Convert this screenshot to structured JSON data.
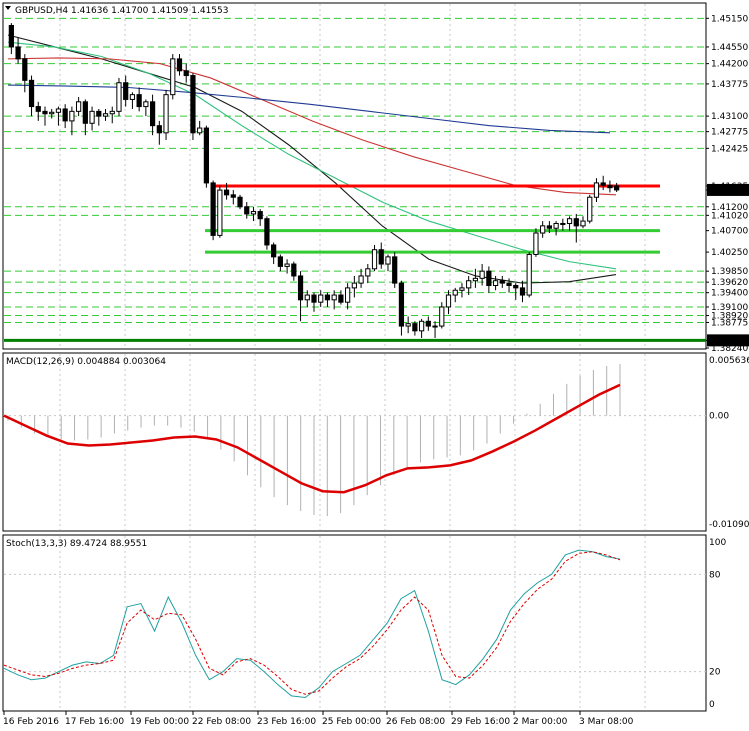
{
  "chart_data": [
    {
      "type": "candlestick",
      "title": "GBPUSD,H4",
      "ohlc_header": [
        "1.41636",
        "1.41700",
        "1.41509",
        "1.41553"
      ],
      "price_labels": [
        "1.45150",
        "1.44550",
        "1.44200",
        "1.43775",
        "1.43100",
        "1.42775",
        "1.42425",
        "1.41635",
        "1.41553",
        "1.41200",
        "1.41020",
        "1.40700",
        "1.40250",
        "1.39850",
        "1.39620",
        "1.39400",
        "1.39100",
        "1.38920",
        "1.38775",
        "1.38400",
        "1.38240"
      ],
      "highlight_labels": [
        "1.41553",
        "1.38400"
      ],
      "ylim": [
        1.3824,
        1.4545
      ],
      "horizontal_levels": [
        {
          "price": 1.41635,
          "color": "#ff0000"
        },
        {
          "price": 1.407,
          "color": "#33cc33"
        },
        {
          "price": 1.4025,
          "color": "#33cc33"
        },
        {
          "price": 1.384,
          "color": "#008000"
        }
      ],
      "dashed_levels": [
        1.4515,
        1.4455,
        1.442,
        1.43775,
        1.431,
        1.42775,
        1.42425,
        1.412,
        1.4102,
        1.3985,
        1.3962,
        1.394,
        1.391,
        1.3892,
        1.38775
      ],
      "candles": [
        [
          1.45,
          1.4505,
          1.444,
          1.4455
        ],
        [
          1.4455,
          1.4475,
          1.442,
          1.443
        ],
        [
          1.443,
          1.444,
          1.436,
          1.4385
        ],
        [
          1.4385,
          1.4395,
          1.431,
          1.433
        ],
        [
          1.433,
          1.434,
          1.43,
          1.432
        ],
        [
          1.432,
          1.433,
          1.429,
          1.4315
        ],
        [
          1.4315,
          1.4325,
          1.4305,
          1.4318
        ],
        [
          1.4318,
          1.433,
          1.429,
          1.4325
        ],
        [
          1.4325,
          1.4335,
          1.4285,
          1.43
        ],
        [
          1.43,
          1.433,
          1.427,
          1.432
        ],
        [
          1.432,
          1.435,
          1.431,
          1.434
        ],
        [
          1.434,
          1.4345,
          1.427,
          1.4295
        ],
        [
          1.4295,
          1.433,
          1.428,
          1.432
        ],
        [
          1.432,
          1.4325,
          1.429,
          1.431
        ],
        [
          1.431,
          1.4325,
          1.43,
          1.4315
        ],
        [
          1.4315,
          1.433,
          1.4295,
          1.432
        ],
        [
          1.432,
          1.439,
          1.431,
          1.438
        ],
        [
          1.438,
          1.4395,
          1.433,
          1.4345
        ],
        [
          1.4345,
          1.436,
          1.4325,
          1.4355
        ],
        [
          1.4355,
          1.437,
          1.432,
          1.433
        ],
        [
          1.433,
          1.4345,
          1.431,
          1.434
        ],
        [
          1.434,
          1.4355,
          1.427,
          1.429
        ],
        [
          1.429,
          1.43,
          1.425,
          1.4275
        ],
        [
          1.4275,
          1.4365,
          1.426,
          1.4355
        ],
        [
          1.4355,
          1.444,
          1.4345,
          1.443
        ],
        [
          1.443,
          1.444,
          1.4395,
          1.4405
        ],
        [
          1.4405,
          1.442,
          1.438,
          1.4395
        ],
        [
          1.4395,
          1.44,
          1.426,
          1.4275
        ],
        [
          1.4275,
          1.43,
          1.427,
          1.4285
        ],
        [
          1.4285,
          1.429,
          1.416,
          1.417
        ],
        [
          1.417,
          1.4175,
          1.405,
          1.406
        ],
        [
          1.406,
          1.4165,
          1.4055,
          1.4155
        ],
        [
          1.4155,
          1.417,
          1.4135,
          1.4145
        ],
        [
          1.4145,
          1.4155,
          1.4125,
          1.414
        ],
        [
          1.414,
          1.4145,
          1.4115,
          1.412
        ],
        [
          1.412,
          1.413,
          1.4095,
          1.4105
        ],
        [
          1.4105,
          1.412,
          1.409,
          1.411
        ],
        [
          1.411,
          1.4115,
          1.408,
          1.4095
        ],
        [
          1.4095,
          1.41,
          1.403,
          1.404
        ],
        [
          1.404,
          1.4045,
          1.4,
          1.4015
        ],
        [
          1.4015,
          1.402,
          1.3985,
          1.3995
        ],
        [
          1.3995,
          1.401,
          1.398,
          1.4
        ],
        [
          1.4,
          1.4005,
          1.3965,
          1.3975
        ],
        [
          1.3975,
          1.3985,
          1.388,
          1.3925
        ],
        [
          1.3925,
          1.3945,
          1.391,
          1.3935
        ],
        [
          1.3935,
          1.394,
          1.39,
          1.392
        ],
        [
          1.392,
          1.3945,
          1.391,
          1.3935
        ],
        [
          1.3935,
          1.394,
          1.391,
          1.3925
        ],
        [
          1.3925,
          1.3945,
          1.3905,
          1.3935
        ],
        [
          1.3935,
          1.3945,
          1.3915,
          1.392
        ],
        [
          1.392,
          1.396,
          1.3905,
          1.395
        ],
        [
          1.395,
          1.3975,
          1.393,
          1.396
        ],
        [
          1.396,
          1.399,
          1.395,
          1.3975
        ],
        [
          1.3975,
          1.4,
          1.396,
          1.399
        ],
        [
          1.399,
          1.404,
          1.3985,
          1.403
        ],
        [
          1.403,
          1.4045,
          1.399,
          1.4
        ],
        [
          1.4,
          1.402,
          1.3985,
          1.4015
        ],
        [
          1.4015,
          1.4025,
          1.395,
          1.396
        ],
        [
          1.396,
          1.3965,
          1.385,
          1.387
        ],
        [
          1.387,
          1.389,
          1.3855,
          1.3875
        ],
        [
          1.3875,
          1.388,
          1.385,
          1.386
        ],
        [
          1.386,
          1.3885,
          1.3845,
          1.388
        ],
        [
          1.388,
          1.389,
          1.386,
          1.387
        ],
        [
          1.387,
          1.388,
          1.3845,
          1.387
        ],
        [
          1.387,
          1.392,
          1.3865,
          1.391
        ],
        [
          1.391,
          1.3945,
          1.3895,
          1.3935
        ],
        [
          1.3935,
          1.395,
          1.392,
          1.3945
        ],
        [
          1.3945,
          1.396,
          1.393,
          1.395
        ],
        [
          1.395,
          1.3975,
          1.3935,
          1.3965
        ],
        [
          1.3965,
          1.399,
          1.395,
          1.397
        ],
        [
          1.397,
          1.4,
          1.3955,
          1.3985
        ],
        [
          1.3985,
          1.3995,
          1.394,
          1.3955
        ],
        [
          1.3955,
          1.3975,
          1.3945,
          1.3965
        ],
        [
          1.3965,
          1.3975,
          1.395,
          1.396
        ],
        [
          1.396,
          1.397,
          1.394,
          1.3955
        ],
        [
          1.3955,
          1.396,
          1.3925,
          1.395
        ],
        [
          1.395,
          1.3965,
          1.392,
          1.3935
        ],
        [
          1.3935,
          1.4025,
          1.393,
          1.402
        ],
        [
          1.402,
          1.4075,
          1.4015,
          1.4065
        ],
        [
          1.4065,
          1.409,
          1.4055,
          1.408
        ],
        [
          1.408,
          1.409,
          1.4065,
          1.4075
        ],
        [
          1.4075,
          1.409,
          1.406,
          1.4085
        ],
        [
          1.4085,
          1.4095,
          1.407,
          1.4085
        ],
        [
          1.4085,
          1.41,
          1.407,
          1.4095
        ],
        [
          1.4095,
          1.4105,
          1.4045,
          1.408
        ],
        [
          1.408,
          1.41,
          1.4075,
          1.409
        ],
        [
          1.409,
          1.4145,
          1.4085,
          1.414
        ],
        [
          1.414,
          1.418,
          1.413,
          1.417
        ],
        [
          1.417,
          1.4185,
          1.4155,
          1.4165
        ],
        [
          1.4165,
          1.4175,
          1.415,
          1.416
        ],
        [
          1.41636,
          1.417,
          1.41509,
          1.41553
        ]
      ],
      "moving_averages": [
        {
          "color": "#1a1a1a",
          "values": [
            1.448,
            1.4455,
            1.443,
            1.44,
            1.437,
            1.432,
            1.425,
            1.417,
            1.408,
            1.401,
            1.3975,
            1.396,
            1.3963,
            1.3978
          ]
        },
        {
          "color": "#2ec27e",
          "values": [
            1.4465,
            1.4455,
            1.4435,
            1.44,
            1.4355,
            1.429,
            1.423,
            1.418,
            1.413,
            1.409,
            1.406,
            1.403,
            1.4005,
            1.399
          ]
        },
        {
          "color": "#cc3333",
          "values": [
            1.443,
            1.4432,
            1.443,
            1.442,
            1.439,
            1.4345,
            1.43,
            1.426,
            1.4225,
            1.4195,
            1.4165,
            1.415,
            1.4145
          ]
        },
        {
          "color": "#1f3a93",
          "values": [
            1.4375,
            1.4373,
            1.437,
            1.436,
            1.4348,
            1.4335,
            1.432,
            1.4305,
            1.429,
            1.428,
            1.4275
          ]
        }
      ]
    },
    {
      "type": "histogram-line",
      "title": "MACD(12,26,9) 0.004884 0.003064",
      "ylim": [
        -0.0109,
        0.0056
      ],
      "tick_labels": [
        "0.005636",
        "0.00",
        "-0.010903"
      ],
      "histogram": [
        -0.0005,
        -0.0012,
        -0.0018,
        -0.0022,
        -0.0024,
        -0.0025,
        -0.0024,
        -0.0022,
        -0.0018,
        -0.0015,
        -0.0012,
        -0.001,
        -0.001,
        -0.0012,
        -0.0016,
        -0.0024,
        -0.0034,
        -0.0046,
        -0.006,
        -0.0072,
        -0.0082,
        -0.009,
        -0.0096,
        -0.01,
        -0.0101,
        -0.0098,
        -0.009,
        -0.008,
        -0.007,
        -0.006,
        -0.0052,
        -0.0047,
        -0.0044,
        -0.0042,
        -0.004,
        -0.0035,
        -0.0028,
        -0.0018,
        -0.0008,
        0.0002,
        0.0012,
        0.0022,
        0.0032,
        0.004,
        0.0046,
        0.005,
        0.0052
      ],
      "signal": [
        0.0,
        -0.001,
        -0.002,
        -0.0028,
        -0.003,
        -0.0029,
        -0.0027,
        -0.0025,
        -0.0022,
        -0.0021,
        -0.0024,
        -0.0032,
        -0.0044,
        -0.0056,
        -0.0068,
        -0.0076,
        -0.0077,
        -0.007,
        -0.006,
        -0.0053,
        -0.0052,
        -0.005,
        -0.0045,
        -0.0036,
        -0.0026,
        -0.0015,
        -0.0003,
        0.0009,
        0.0021,
        0.0031
      ]
    },
    {
      "type": "line",
      "title": "Stoch(13,3,3) 89.4724 88.9551",
      "ylim": [
        0,
        100
      ],
      "tick_labels": [
        "100",
        "80",
        "20",
        "0"
      ],
      "k": [
        22,
        18,
        15,
        16,
        20,
        24,
        26,
        25,
        30,
        60,
        62,
        45,
        66,
        50,
        30,
        15,
        20,
        28,
        27,
        20,
        12,
        5,
        4,
        10,
        20,
        25,
        30,
        40,
        50,
        65,
        70,
        45,
        15,
        12,
        18,
        28,
        40,
        58,
        68,
        75,
        80,
        92,
        95,
        94,
        91,
        89.4724
      ],
      "d": [
        24,
        21,
        18,
        17,
        19,
        22,
        24,
        25,
        27,
        50,
        58,
        52,
        56,
        55,
        40,
        22,
        18,
        26,
        28,
        24,
        17,
        9,
        6,
        8,
        16,
        23,
        28,
        36,
        46,
        58,
        66,
        58,
        30,
        17,
        16,
        24,
        35,
        51,
        62,
        71,
        77,
        88,
        93,
        94,
        92,
        88.9551
      ]
    }
  ],
  "time_axis": {
    "labels": [
      "16 Feb 2016",
      "17 Feb 16:00",
      "19 Feb 00:00",
      "22 Feb 08:00",
      "23 Feb 16:00",
      "25 Feb 00:00",
      "26 Feb 08:00",
      "29 Feb 16:00",
      "2 Mar 00:00",
      "3 Mar 08:00"
    ]
  },
  "colors": {
    "background": "#ffffff",
    "grid": "#c8c8c8",
    "candle": "#000000",
    "macd_hist": "#b0b0b0",
    "macd_signal": "#dd0000",
    "stoch_k": "#20a0a0",
    "stoch_d": "#dd0000",
    "label_highlight_bg": "#000000",
    "dashed_level": "#33cc33"
  }
}
